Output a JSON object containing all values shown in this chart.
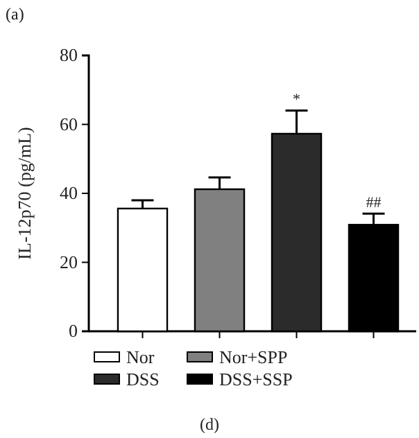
{
  "chart_data": {
    "type": "bar",
    "ylabel": "IL-12p70 (pg/mL)",
    "categories": [
      null,
      null,
      null,
      null
    ],
    "series": [
      {
        "name": "Nor",
        "color": "#ffffff",
        "values": [
          35.6,
          null,
          null,
          null
        ],
        "errors": [
          [
            35.6,
            38.0
          ],
          null,
          null,
          null
        ]
      },
      {
        "name": "Nor+SPP",
        "color": "#808080",
        "values": [
          null,
          41.2,
          null,
          null
        ],
        "errors": [
          null,
          [
            41.2,
            44.6
          ],
          null,
          null
        ]
      },
      {
        "name": "DSS",
        "color": "#2b2b2b",
        "values": [
          null,
          null,
          57.3,
          null
        ],
        "errors": [
          null,
          null,
          [
            57.3,
            64.0
          ],
          null
        ]
      },
      {
        "name": "DSS+SSP",
        "color": "#000000",
        "values": [
          null,
          null,
          null,
          30.9
        ],
        "errors": [
          null,
          null,
          null,
          [
            30.9,
            34.1
          ]
        ]
      }
    ],
    "ylim": [
      0,
      80
    ],
    "yticks": [
      0,
      20,
      40,
      60,
      80
    ],
    "legend": "bottom",
    "grid": false,
    "annotations": [
      "(a)",
      "(d)",
      {
        "text": "*",
        "y": 66
      },
      {
        "text": "##",
        "y": 36
      }
    ]
  }
}
